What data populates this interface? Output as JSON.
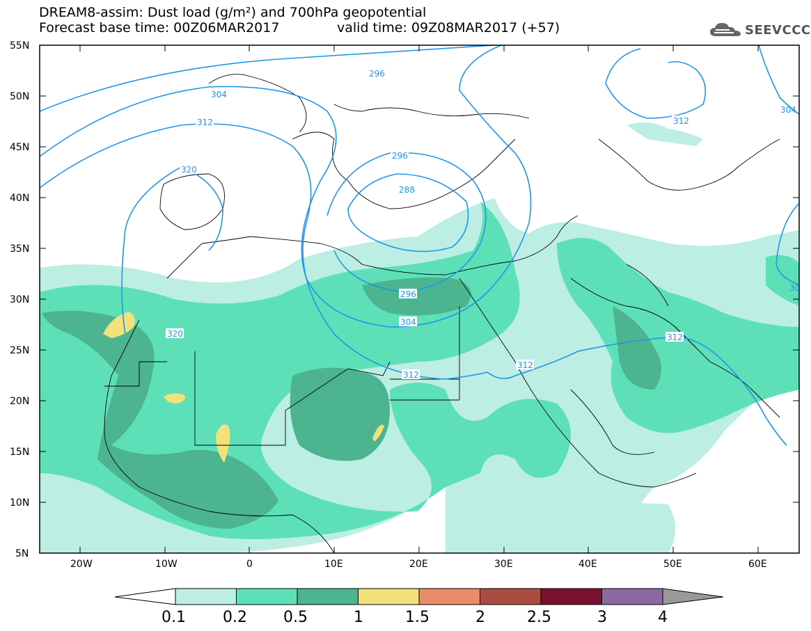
{
  "header": {
    "title_line1": "DREAM8-assim: Dust load (g/m²) and 700hPa geopotential",
    "forecast_base": "Forecast base time: 00Z06MAR2017",
    "valid_time": "valid time: 09Z08MAR2017 (+57)"
  },
  "logo": {
    "text": "SEEVCCC",
    "icon": "cloud-icon"
  },
  "axes": {
    "lat_labels": [
      "55N",
      "50N",
      "45N",
      "40N",
      "35N",
      "30N",
      "25N",
      "20N",
      "15N",
      "10N",
      "5N"
    ],
    "lon_labels": [
      "20W",
      "10W",
      "0",
      "10E",
      "20E",
      "30E",
      "40E",
      "50E",
      "60E"
    ]
  },
  "contour_labels": [
    {
      "text": "296"
    },
    {
      "text": "304"
    },
    {
      "text": "312"
    },
    {
      "text": "320"
    },
    {
      "text": "296"
    },
    {
      "text": "288"
    },
    {
      "text": "296"
    },
    {
      "text": "304"
    },
    {
      "text": "312"
    },
    {
      "text": "312"
    },
    {
      "text": "312"
    },
    {
      "text": "320"
    },
    {
      "text": "312"
    },
    {
      "text": "304"
    },
    {
      "text": "30"
    }
  ],
  "colorbar": {
    "labels": [
      "0.1",
      "0.2",
      "0.5",
      "1",
      "1.5",
      "2",
      "2.5",
      "3",
      "4"
    ],
    "colors": [
      "#bdeee4",
      "#5de0b8",
      "#4cb48f",
      "#f2e27a",
      "#e98c6a",
      "#a94d40",
      "#7a1030",
      "#8a6aa0"
    ],
    "under_color": "#ffffff",
    "over_color": "#999999"
  },
  "colors": {
    "contour": "#2196e8",
    "dust_01": "#bdeee4",
    "dust_02": "#5de0b8",
    "dust_05": "#4cb48f",
    "dust_1": "#f2e27a"
  }
}
